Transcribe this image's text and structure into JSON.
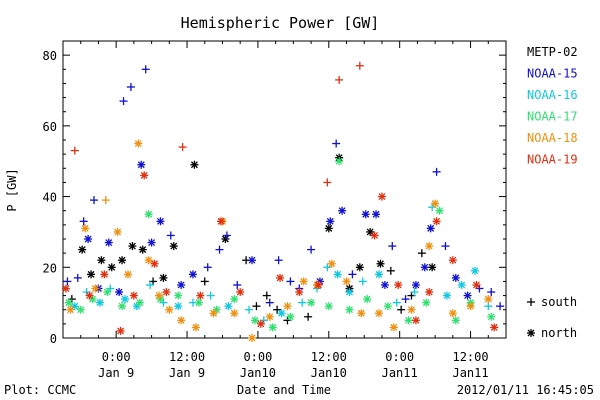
{
  "chart_data": {
    "type": "scatter",
    "title": "Hemispheric Power [GW]",
    "xlabel": "Date and Time",
    "ylabel": "P [GW]",
    "xlim": [
      "2012-01-08 15:00",
      "2012-01-11 18:00"
    ],
    "ylim": [
      0,
      84
    ],
    "yticks": [
      0,
      20,
      40,
      60,
      80
    ],
    "xticks": [
      {
        "t": "2012-01-09 00:00",
        "line1": "0:00",
        "line2": "Jan 9"
      },
      {
        "t": "2012-01-09 12:00",
        "line1": "12:00",
        "line2": "Jan 9"
      },
      {
        "t": "2012-01-10 00:00",
        "line1": "0:00",
        "line2": "Jan10"
      },
      {
        "t": "2012-01-10 12:00",
        "line1": "12:00",
        "line2": "Jan10"
      },
      {
        "t": "2012-01-11 00:00",
        "line1": "0:00",
        "line2": "Jan11"
      },
      {
        "t": "2012-01-11 12:00",
        "line1": "12:00",
        "line2": "Jan11"
      }
    ],
    "marker_legend": [
      {
        "symbol": "+",
        "label": "south"
      },
      {
        "symbol": "*",
        "label": "north"
      }
    ],
    "series": [
      {
        "name": "METP-02",
        "color": "#000000",
        "points": [
          [
            "2012-01-08 16:30",
            11,
            "+"
          ],
          [
            "2012-01-08 18:15",
            25,
            "*"
          ],
          [
            "2012-01-08 19:45",
            18,
            "*"
          ],
          [
            "2012-01-08 21:30",
            22,
            "*"
          ],
          [
            "2012-01-08 23:15",
            20,
            "*"
          ],
          [
            "2012-01-09 01:00",
            22,
            "*"
          ],
          [
            "2012-01-09 02:45",
            26,
            "*"
          ],
          [
            "2012-01-09 04:30",
            25,
            "*"
          ],
          [
            "2012-01-09 06:15",
            16,
            "+"
          ],
          [
            "2012-01-09 08:00",
            17,
            "*"
          ],
          [
            "2012-01-09 09:45",
            26,
            "*"
          ],
          [
            "2012-01-09 13:15",
            49,
            "*"
          ],
          [
            "2012-01-09 15:00",
            16,
            "+"
          ],
          [
            "2012-01-09 18:30",
            28,
            "*"
          ],
          [
            "2012-01-09 22:00",
            22,
            "+"
          ],
          [
            "2012-01-09 23:45",
            9,
            "+"
          ],
          [
            "2012-01-10 01:30",
            12,
            "+"
          ],
          [
            "2012-01-10 03:15",
            8,
            "+"
          ],
          [
            "2012-01-10 05:00",
            5,
            "+"
          ],
          [
            "2012-01-10 08:30",
            6,
            "+"
          ],
          [
            "2012-01-10 12:00",
            31,
            "*"
          ],
          [
            "2012-01-10 13:45",
            51,
            "*"
          ],
          [
            "2012-01-10 15:30",
            14,
            "*"
          ],
          [
            "2012-01-10 17:15",
            20,
            "*"
          ],
          [
            "2012-01-10 19:00",
            30,
            "*"
          ],
          [
            "2012-01-10 20:45",
            21,
            "*"
          ],
          [
            "2012-01-10 22:30",
            19,
            "+"
          ],
          [
            "2012-01-11 00:15",
            8,
            "+"
          ],
          [
            "2012-01-11 02:00",
            12,
            "+"
          ],
          [
            "2012-01-11 03:45",
            24,
            "+"
          ],
          [
            "2012-01-11 05:30",
            20,
            "*"
          ]
        ]
      },
      {
        "name": "NOAA-15",
        "color": "#1010d0",
        "points": [
          [
            "2012-01-08 15:45",
            16,
            "+"
          ],
          [
            "2012-01-08 17:30",
            17,
            "+"
          ],
          [
            "2012-01-08 18:30",
            33,
            "+"
          ],
          [
            "2012-01-08 19:15",
            28,
            "*"
          ],
          [
            "2012-01-08 20:15",
            39,
            "+"
          ],
          [
            "2012-01-08 21:00",
            14,
            "*"
          ],
          [
            "2012-01-08 22:45",
            27,
            "*"
          ],
          [
            "2012-01-09 00:30",
            13,
            "*"
          ],
          [
            "2012-01-09 01:15",
            67,
            "+"
          ],
          [
            "2012-01-09 02:30",
            71,
            "+"
          ],
          [
            "2012-01-09 04:15",
            49,
            "*"
          ],
          [
            "2012-01-09 05:00",
            76,
            "+"
          ],
          [
            "2012-01-09 06:00",
            27,
            "*"
          ],
          [
            "2012-01-09 07:30",
            33,
            "*"
          ],
          [
            "2012-01-09 09:15",
            29,
            "+"
          ],
          [
            "2012-01-09 11:00",
            15,
            "*"
          ],
          [
            "2012-01-09 13:00",
            18,
            "*"
          ],
          [
            "2012-01-09 15:30",
            20,
            "+"
          ],
          [
            "2012-01-09 17:30",
            25,
            "+"
          ],
          [
            "2012-01-09 18:45",
            29,
            "+"
          ],
          [
            "2012-01-09 20:30",
            15,
            "+"
          ],
          [
            "2012-01-09 23:00",
            22,
            "*"
          ],
          [
            "2012-01-10 02:00",
            10,
            "+"
          ],
          [
            "2012-01-10 03:30",
            22,
            "+"
          ],
          [
            "2012-01-10 05:30",
            16,
            "+"
          ],
          [
            "2012-01-10 07:00",
            14,
            "+"
          ],
          [
            "2012-01-10 09:00",
            25,
            "+"
          ],
          [
            "2012-01-10 10:30",
            16,
            "*"
          ],
          [
            "2012-01-10 12:15",
            33,
            "*"
          ],
          [
            "2012-01-10 13:15",
            55,
            "+"
          ],
          [
            "2012-01-10 14:15",
            36,
            "*"
          ],
          [
            "2012-01-10 16:00",
            18,
            "+"
          ],
          [
            "2012-01-10 18:15",
            35,
            "*"
          ],
          [
            "2012-01-10 20:00",
            35,
            "*"
          ],
          [
            "2012-01-10 21:30",
            15,
            "*"
          ],
          [
            "2012-01-10 22:45",
            26,
            "+"
          ],
          [
            "2012-01-11 01:00",
            11,
            "+"
          ],
          [
            "2012-01-11 02:45",
            15,
            "*"
          ],
          [
            "2012-01-11 04:15",
            20,
            "*"
          ],
          [
            "2012-01-11 05:15",
            31,
            "*"
          ],
          [
            "2012-01-11 06:15",
            47,
            "+"
          ],
          [
            "2012-01-11 07:45",
            26,
            "+"
          ],
          [
            "2012-01-11 09:30",
            17,
            "*"
          ],
          [
            "2012-01-11 11:30",
            12,
            "*"
          ],
          [
            "2012-01-11 13:30",
            14,
            "+"
          ],
          [
            "2012-01-11 15:30",
            13,
            "+"
          ],
          [
            "2012-01-11 17:00",
            9,
            "+"
          ]
        ]
      },
      {
        "name": "NOAA-16",
        "color": "#10c8e0",
        "points": [
          [
            "2012-01-08 17:00",
            9,
            "*"
          ],
          [
            "2012-01-08 19:00",
            13,
            "+"
          ],
          [
            "2012-01-08 21:15",
            10,
            "*"
          ],
          [
            "2012-01-08 23:00",
            14,
            "+"
          ],
          [
            "2012-01-09 01:30",
            11,
            "*"
          ],
          [
            "2012-01-09 03:30",
            9,
            "*"
          ],
          [
            "2012-01-09 05:45",
            15,
            "+"
          ],
          [
            "2012-01-09 08:00",
            10,
            "+"
          ],
          [
            "2012-01-09 10:30",
            9,
            "*"
          ],
          [
            "2012-01-09 13:00",
            10,
            "+"
          ],
          [
            "2012-01-09 16:00",
            12,
            "+"
          ],
          [
            "2012-01-09 19:00",
            9,
            "*"
          ],
          [
            "2012-01-09 22:30",
            8,
            "+"
          ],
          [
            "2012-01-10 01:00",
            5,
            "+"
          ],
          [
            "2012-01-10 04:00",
            7,
            "*"
          ],
          [
            "2012-01-10 07:30",
            10,
            "+"
          ],
          [
            "2012-01-10 10:00",
            14,
            "+"
          ],
          [
            "2012-01-10 11:45",
            20,
            "+"
          ],
          [
            "2012-01-10 13:30",
            18,
            "*"
          ],
          [
            "2012-01-10 15:30",
            13,
            "*"
          ],
          [
            "2012-01-10 17:45",
            16,
            "+"
          ],
          [
            "2012-01-10 20:30",
            18,
            "*"
          ],
          [
            "2012-01-10 23:30",
            10,
            "+"
          ],
          [
            "2012-01-11 02:30",
            13,
            "+"
          ],
          [
            "2012-01-11 05:30",
            37,
            "+"
          ],
          [
            "2012-01-11 08:00",
            12,
            "*"
          ],
          [
            "2012-01-11 10:30",
            15,
            "*"
          ],
          [
            "2012-01-11 12:45",
            19,
            "*"
          ],
          [
            "2012-01-11 15:00",
            9,
            "+"
          ]
        ]
      },
      {
        "name": "NOAA-17",
        "color": "#30e070",
        "points": [
          [
            "2012-01-08 16:00",
            10,
            "*"
          ],
          [
            "2012-01-08 18:00",
            8,
            "*"
          ],
          [
            "2012-01-08 20:00",
            11,
            "*"
          ],
          [
            "2012-01-08 22:30",
            13,
            "*"
          ],
          [
            "2012-01-09 01:00",
            9,
            "*"
          ],
          [
            "2012-01-09 04:00",
            10,
            "*"
          ],
          [
            "2012-01-09 05:30",
            35,
            "*"
          ],
          [
            "2012-01-09 07:30",
            11,
            "*"
          ],
          [
            "2012-01-09 10:30",
            12,
            "*"
          ],
          [
            "2012-01-09 14:00",
            10,
            "*"
          ],
          [
            "2012-01-09 17:00",
            8,
            "*"
          ],
          [
            "2012-01-09 20:00",
            11,
            "*"
          ],
          [
            "2012-01-09 23:30",
            5,
            "*"
          ],
          [
            "2012-01-10 02:30",
            3,
            "*"
          ],
          [
            "2012-01-10 05:30",
            6,
            "*"
          ],
          [
            "2012-01-10 09:00",
            10,
            "*"
          ],
          [
            "2012-01-10 12:00",
            9,
            "*"
          ],
          [
            "2012-01-10 13:45",
            50,
            "*"
          ],
          [
            "2012-01-10 15:30",
            8,
            "*"
          ],
          [
            "2012-01-10 18:30",
            11,
            "*"
          ],
          [
            "2012-01-10 22:00",
            9,
            "*"
          ],
          [
            "2012-01-11 01:30",
            5,
            "*"
          ],
          [
            "2012-01-11 04:30",
            10,
            "*"
          ],
          [
            "2012-01-11 06:45",
            36,
            "*"
          ],
          [
            "2012-01-11 09:30",
            5,
            "*"
          ],
          [
            "2012-01-11 12:00",
            10,
            "*"
          ],
          [
            "2012-01-11 15:30",
            6,
            "*"
          ]
        ]
      },
      {
        "name": "NOAA-18",
        "color": "#f09010",
        "points": [
          [
            "2012-01-08 16:15",
            8,
            "*"
          ],
          [
            "2012-01-08 18:45",
            31,
            "*"
          ],
          [
            "2012-01-08 20:30",
            14,
            "*"
          ],
          [
            "2012-01-08 22:15",
            39,
            "+"
          ],
          [
            "2012-01-09 00:15",
            30,
            "*"
          ],
          [
            "2012-01-09 02:00",
            18,
            "*"
          ],
          [
            "2012-01-09 03:45",
            55,
            "*"
          ],
          [
            "2012-01-09 05:30",
            22,
            "*"
          ],
          [
            "2012-01-09 07:15",
            12,
            "*"
          ],
          [
            "2012-01-09 09:00",
            8,
            "*"
          ],
          [
            "2012-01-09 11:00",
            5,
            "*"
          ],
          [
            "2012-01-09 13:30",
            3,
            "*"
          ],
          [
            "2012-01-09 16:30",
            7,
            "*"
          ],
          [
            "2012-01-09 18:00",
            33,
            "*"
          ],
          [
            "2012-01-09 20:00",
            7,
            "*"
          ],
          [
            "2012-01-09 23:00",
            0,
            "*"
          ],
          [
            "2012-01-10 02:00",
            6,
            "*"
          ],
          [
            "2012-01-10 05:00",
            9,
            "*"
          ],
          [
            "2012-01-10 07:45",
            16,
            "*"
          ],
          [
            "2012-01-10 10:00",
            15,
            "*"
          ],
          [
            "2012-01-10 12:30",
            21,
            "*"
          ],
          [
            "2012-01-10 15:00",
            16,
            "*"
          ],
          [
            "2012-01-10 17:30",
            7,
            "*"
          ],
          [
            "2012-01-10 20:30",
            7,
            "*"
          ],
          [
            "2012-01-10 23:00",
            3,
            "*"
          ],
          [
            "2012-01-11 02:00",
            8,
            "*"
          ],
          [
            "2012-01-11 05:00",
            26,
            "*"
          ],
          [
            "2012-01-11 06:00",
            38,
            "*"
          ],
          [
            "2012-01-11 09:00",
            7,
            "*"
          ],
          [
            "2012-01-11 12:00",
            9,
            "*"
          ],
          [
            "2012-01-11 15:00",
            11,
            "*"
          ]
        ]
      },
      {
        "name": "NOAA-19",
        "color": "#e03010",
        "points": [
          [
            "2012-01-08 15:30",
            14,
            "*"
          ],
          [
            "2012-01-08 17:00",
            53,
            "+"
          ],
          [
            "2012-01-08 19:30",
            12,
            "*"
          ],
          [
            "2012-01-08 22:00",
            18,
            "*"
          ],
          [
            "2012-01-09 00:45",
            2,
            "*"
          ],
          [
            "2012-01-09 03:00",
            12,
            "*"
          ],
          [
            "2012-01-09 04:45",
            46,
            "*"
          ],
          [
            "2012-01-09 06:30",
            21,
            "*"
          ],
          [
            "2012-01-09 08:30",
            13,
            "*"
          ],
          [
            "2012-01-09 11:15",
            54,
            "+"
          ],
          [
            "2012-01-09 14:15",
            12,
            "*"
          ],
          [
            "2012-01-09 17:45",
            33,
            "*"
          ],
          [
            "2012-01-09 21:00",
            13,
            "*"
          ],
          [
            "2012-01-10 00:30",
            4,
            "*"
          ],
          [
            "2012-01-10 03:45",
            17,
            "*"
          ],
          [
            "2012-01-10 07:00",
            13,
            "*"
          ],
          [
            "2012-01-10 10:15",
            15,
            "*"
          ],
          [
            "2012-01-10 11:45",
            44,
            "+"
          ],
          [
            "2012-01-10 13:45",
            73,
            "+"
          ],
          [
            "2012-01-10 17:15",
            77,
            "+"
          ],
          [
            "2012-01-10 19:45",
            29,
            "*"
          ],
          [
            "2012-01-10 21:00",
            40,
            "*"
          ],
          [
            "2012-01-10 23:45",
            15,
            "*"
          ],
          [
            "2012-01-11 02:45",
            5,
            "*"
          ],
          [
            "2012-01-11 05:00",
            13,
            "*"
          ],
          [
            "2012-01-11 06:15",
            33,
            "*"
          ],
          [
            "2012-01-11 09:00",
            22,
            "*"
          ],
          [
            "2012-01-11 13:00",
            15,
            "*"
          ],
          [
            "2012-01-11 16:00",
            3,
            "*"
          ]
        ]
      }
    ]
  },
  "footer": {
    "source": "Plot: CCMC",
    "timestamp": "2012/01/11 16:45:05"
  }
}
